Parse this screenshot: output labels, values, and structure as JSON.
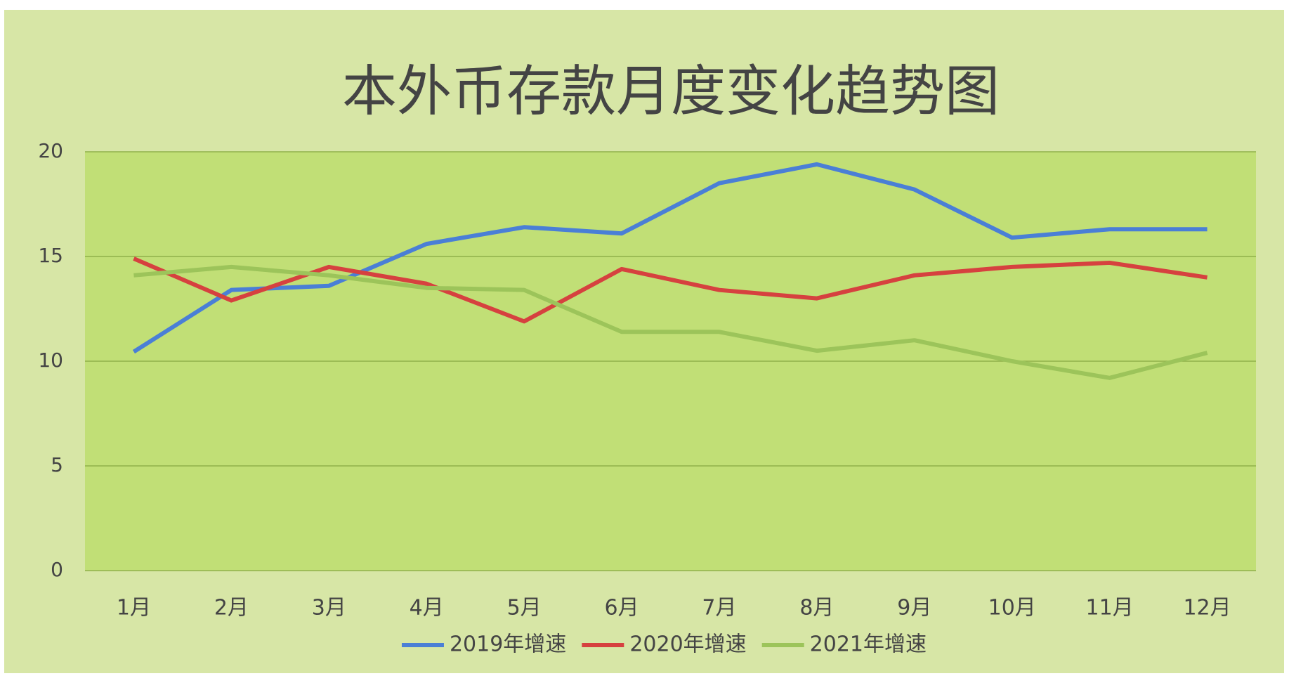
{
  "chart_data": {
    "type": "line",
    "title": "本外币存款月度变化趋势图",
    "categories": [
      "1月",
      "2月",
      "3月",
      "4月",
      "5月",
      "6月",
      "7月",
      "8月",
      "9月",
      "10月",
      "11月",
      "12月"
    ],
    "series": [
      {
        "name": "2019年增速",
        "color": "#4a7fd6",
        "values": [
          10.45,
          13.4,
          13.6,
          15.6,
          16.4,
          16.1,
          18.5,
          19.4,
          18.2,
          15.9,
          16.3,
          16.3
        ]
      },
      {
        "name": "2020年增速",
        "color": "#d6413f",
        "values": [
          14.9,
          12.9,
          14.5,
          13.7,
          11.9,
          14.4,
          13.4,
          13.0,
          14.1,
          14.5,
          14.7,
          14.0
        ]
      },
      {
        "name": "2021年增速",
        "color": "#9cc45a",
        "values": [
          14.1,
          14.5,
          14.1,
          13.5,
          13.4,
          11.4,
          11.4,
          10.5,
          11.0,
          10.0,
          9.2,
          10.4
        ]
      }
    ],
    "ylim": [
      0,
      20
    ],
    "yticks": [
      0,
      5,
      10,
      15,
      20
    ],
    "grid": true,
    "legend": "bottom"
  }
}
